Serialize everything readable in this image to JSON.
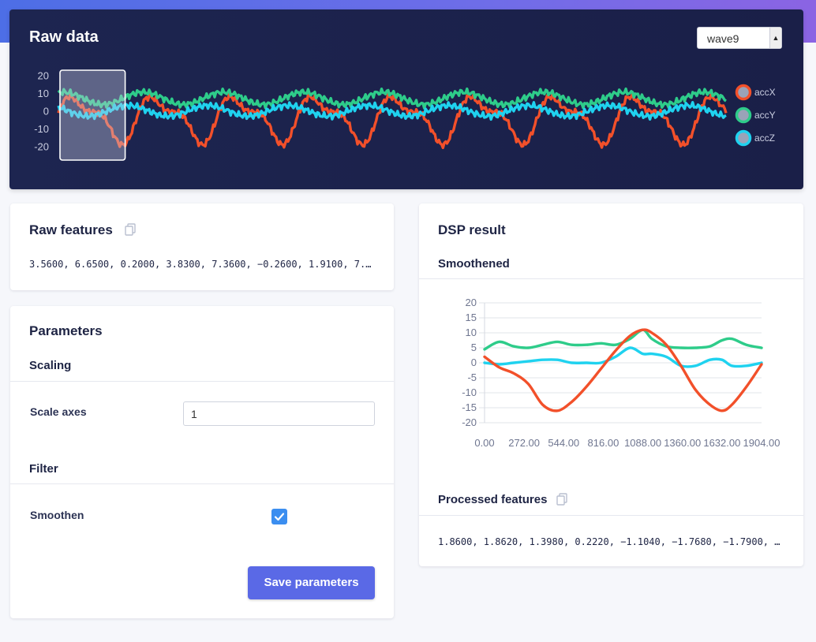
{
  "raw": {
    "title": "Raw data",
    "sample_select": {
      "value": "wave9"
    },
    "chart_data": {
      "type": "line",
      "title": "Raw data",
      "y_ticks": [
        "20",
        "10",
        "0",
        "-10",
        "-20"
      ],
      "ylim": [
        -25,
        22
      ],
      "x_range": [
        0,
        2000
      ],
      "legend": [
        {
          "name": "accX",
          "color": "#f2502a"
        },
        {
          "name": "accY",
          "color": "#2ecc8a"
        },
        {
          "name": "accZ",
          "color": "#1fd2ef"
        }
      ],
      "selection_window": [
        0,
        200
      ],
      "series": [
        {
          "name": "accX",
          "color": "#f2502a",
          "amp": 11,
          "period": 240,
          "phase": 0.0,
          "offset": -3.5
        },
        {
          "name": "accY",
          "color": "#2ecc8a",
          "amp": 3.5,
          "period": 240,
          "phase": 1.2,
          "offset": 7.5
        },
        {
          "name": "accZ",
          "color": "#1fd2ef",
          "amp": 3.0,
          "period": 240,
          "phase": 2.4,
          "offset": 0.5
        }
      ]
    }
  },
  "raw_features": {
    "title": "Raw features",
    "values": "3.5600, 6.6500, 0.2000, 3.8300, 7.3600, −0.2600, 1.9100, 7.…"
  },
  "parameters": {
    "title": "Parameters",
    "scaling_heading": "Scaling",
    "scale_axes_label": "Scale axes",
    "scale_axes_value": "1",
    "filter_heading": "Filter",
    "smoothen_label": "Smoothen",
    "smoothen_checked": true,
    "save_label": "Save parameters"
  },
  "dsp": {
    "title": "DSP result",
    "smoothened_heading": "Smoothened",
    "chart_data": {
      "type": "line",
      "title": "Smoothened",
      "x_ticks": [
        "0.00",
        "272.00",
        "544.00",
        "816.00",
        "1088.00",
        "1360.00",
        "1632.00",
        "1904.00"
      ],
      "x": [
        0,
        100,
        200,
        300,
        400,
        500,
        600,
        700,
        800,
        900,
        1000,
        1088,
        1150,
        1250,
        1350,
        1450,
        1550,
        1632,
        1700,
        1800,
        1904
      ],
      "ylim": [
        -20,
        20
      ],
      "y_ticks": [
        "20",
        "15",
        "10",
        "5",
        "0",
        "-5",
        "-10",
        "-15",
        "-20"
      ],
      "series": [
        {
          "name": "accX",
          "color": "#f2502a",
          "values": [
            2,
            -1.5,
            -3.5,
            -7,
            -14,
            -16,
            -13,
            -8,
            -2,
            4,
            9,
            11,
            10,
            6,
            -1,
            -9,
            -14,
            -16,
            -14,
            -8,
            -0.5
          ]
        },
        {
          "name": "accY",
          "color": "#2ecc8a",
          "values": [
            4.5,
            7,
            5.5,
            5,
            6,
            7,
            6,
            6,
            6.5,
            6,
            8,
            11,
            8,
            5.5,
            5,
            5,
            5.5,
            7.5,
            8,
            6,
            5
          ]
        },
        {
          "name": "accZ",
          "color": "#1fd2ef",
          "values": [
            0,
            -0.5,
            0,
            0.5,
            1,
            1,
            0,
            0,
            0,
            2,
            5,
            3,
            3,
            2,
            -1,
            -1,
            1,
            1,
            -1,
            -1,
            0
          ]
        }
      ]
    },
    "processed_features_title": "Processed features",
    "processed_values": "1.8600, 1.8620, 1.3980, 0.2220, −1.1040, −1.7680, −1.7900, …"
  }
}
